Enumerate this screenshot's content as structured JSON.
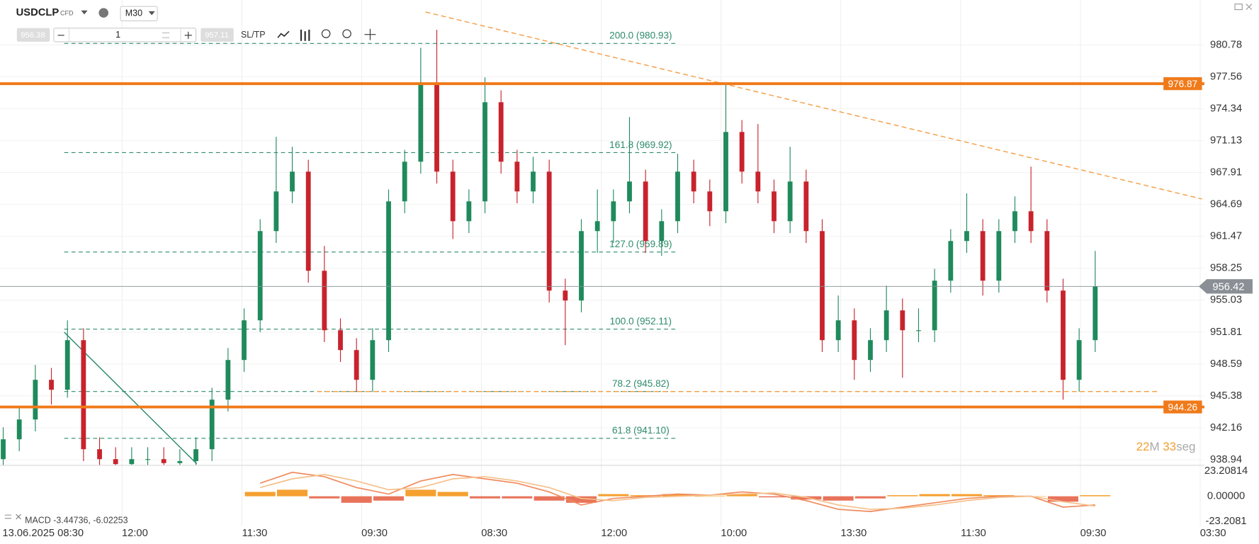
{
  "toolbar": {
    "symbol": "USDCLP",
    "instrument_type": "CFD",
    "timeframe": "M30",
    "sell_price": "956.38",
    "quantity": "1",
    "buy_price": "957.11",
    "sl_tp": "SL/TP"
  },
  "chart_data": {
    "type": "candlestick",
    "candles": [
      [
        939,
        942.2,
        937.8,
        941
      ],
      [
        941,
        944.2,
        939.8,
        943
      ],
      [
        943,
        948.5,
        941.8,
        947
      ],
      [
        947,
        948.2,
        944.5,
        946
      ],
      [
        946,
        953.0,
        945.2,
        951
      ],
      [
        951,
        952.2,
        938.8,
        940
      ],
      [
        940,
        941.2,
        937.8,
        939
      ],
      [
        939,
        940.2,
        937.3,
        938.5
      ],
      [
        938.5,
        940.2,
        937.3,
        939
      ],
      [
        939,
        940.2,
        937.8,
        939
      ],
      [
        939,
        940.2,
        937.4,
        938.6
      ],
      [
        938.6,
        940.0,
        937.4,
        938.8
      ],
      [
        938.8,
        941.2,
        937.6,
        940
      ],
      [
        940,
        946.2,
        938.8,
        945
      ],
      [
        945,
        950.2,
        943.8,
        949
      ],
      [
        949,
        954.2,
        947.8,
        953
      ],
      [
        953,
        963.2,
        951.8,
        962
      ],
      [
        962,
        971.5,
        960.8,
        966
      ],
      [
        966,
        970.5,
        964.8,
        968
      ],
      [
        968,
        969.2,
        956.8,
        958
      ],
      [
        958,
        960.5,
        950.8,
        952
      ],
      [
        952,
        953.2,
        948.8,
        950
      ],
      [
        950,
        951.2,
        945.8,
        947
      ],
      [
        947,
        952.2,
        945.8,
        951
      ],
      [
        951,
        966.2,
        949.8,
        965
      ],
      [
        965,
        970.2,
        963.8,
        969
      ],
      [
        969,
        980.5,
        967.8,
        977
      ],
      [
        977,
        982.3,
        966.8,
        968
      ],
      [
        968,
        969.2,
        961.2,
        963
      ],
      [
        963,
        966.2,
        961.8,
        965
      ],
      [
        965,
        977.5,
        963.8,
        975
      ],
      [
        975,
        976.2,
        967.8,
        969
      ],
      [
        969,
        970.2,
        964.8,
        966
      ],
      [
        966,
        969.5,
        964.8,
        968
      ],
      [
        968,
        969.2,
        954.8,
        956
      ],
      [
        956,
        957.2,
        950.5,
        955
      ],
      [
        955,
        963.2,
        953.8,
        962
      ],
      [
        962,
        966.2,
        959.8,
        963
      ],
      [
        963,
        966.2,
        960.8,
        965
      ],
      [
        965,
        973.5,
        963.8,
        967
      ],
      [
        967,
        968.2,
        959.8,
        961
      ],
      [
        961,
        964.2,
        959.5,
        963
      ],
      [
        963,
        969.8,
        961.8,
        968
      ],
      [
        968,
        969.2,
        964.8,
        966
      ],
      [
        966,
        967.2,
        962.5,
        964
      ],
      [
        964,
        976.8,
        962.8,
        972
      ],
      [
        972,
        973.2,
        966.8,
        968
      ],
      [
        968,
        972.8,
        964.8,
        966
      ],
      [
        966,
        967.2,
        961.8,
        963
      ],
      [
        963,
        970.5,
        961.8,
        967
      ],
      [
        967,
        968.2,
        960.8,
        962
      ],
      [
        962,
        963.2,
        949.8,
        951
      ],
      [
        951,
        955.5,
        949.8,
        953
      ],
      [
        953,
        954.2,
        947.0,
        949
      ],
      [
        949,
        952.2,
        947.8,
        951
      ],
      [
        951,
        956.5,
        949.8,
        954
      ],
      [
        954,
        955.2,
        947.2,
        952
      ],
      [
        952,
        954.2,
        950.8,
        952
      ],
      [
        952,
        958.2,
        950.8,
        957
      ],
      [
        957,
        962.2,
        955.8,
        961
      ],
      [
        961,
        965.8,
        959.8,
        962
      ],
      [
        962,
        963.2,
        955.5,
        957
      ],
      [
        957,
        963.2,
        955.8,
        962
      ],
      [
        962,
        965.5,
        960.8,
        964
      ],
      [
        964,
        968.5,
        960.8,
        962
      ],
      [
        962,
        963.2,
        954.8,
        956
      ],
      [
        956,
        957.2,
        945.0,
        947
      ],
      [
        947,
        952.2,
        945.8,
        951
      ],
      [
        951,
        960.0,
        949.8,
        956.42
      ]
    ],
    "colors": {
      "up": "#1f8a5c",
      "down": "#c8232c"
    },
    "ylim": [
      938.37,
      985.31
    ],
    "yticks": [
      980.78,
      977.56,
      974.34,
      971.13,
      967.91,
      964.69,
      961.47,
      958.25,
      955.03,
      951.81,
      948.59,
      945.38,
      942.16,
      938.94
    ],
    "time_labels": [
      "13.06.2025 08:30",
      "12:00",
      "11:30",
      "09:30",
      "08:30",
      "12:00",
      "10:00",
      "13:30",
      "11:30",
      "09:30",
      "03:30"
    ],
    "levels": [
      {
        "price": 976.87,
        "color": "#f07a1a"
      },
      {
        "price": 944.26,
        "color": "#f07a1a"
      }
    ],
    "current_price": 956.42,
    "fibonacci": [
      {
        "price": 980.93,
        "label": "200.0 (980.93)"
      },
      {
        "price": 969.92,
        "label": "161.8 (969.92)"
      },
      {
        "price": 959.89,
        "label": "127.0 (959.89)"
      },
      {
        "price": 952.11,
        "label": "100.0 (952.11)"
      },
      {
        "price": 945.82,
        "label": "78.2 (945.82)"
      },
      {
        "price": 941.1,
        "label": "61.8 (941.10)"
      }
    ],
    "fib_color": "#2e8b6b",
    "trendlines": [
      {
        "x": [
          26.3,
          74.65
        ],
        "y": [
          984.1,
          965.24
        ],
        "color": "#f5a04a",
        "dashed": true
      },
      {
        "x": [
          3.8,
          12.05
        ],
        "y": [
          951.8,
          938.53
        ],
        "color": "#2e8b6b",
        "dashed": false
      },
      {
        "x": [
          19.55,
          72.05
        ],
        "y": [
          945.82,
          945.82
        ],
        "color": "#f5a04a",
        "dashed": true
      }
    ],
    "timer": {
      "minutes": "22",
      "minutes_unit": "M",
      "seconds": "33",
      "seconds_unit": "seg"
    },
    "macd": {
      "label": "MACD -3.44736, -6.02253",
      "x": [
        16,
        18,
        20,
        22,
        24,
        26,
        28,
        30,
        32,
        34,
        36,
        38,
        40,
        42,
        44,
        46,
        48,
        50,
        52,
        54,
        56,
        58,
        60,
        62,
        64,
        66,
        68
      ],
      "macd": [
        12,
        22,
        18,
        8,
        2,
        14,
        20,
        16,
        12,
        4,
        -8,
        -2,
        0,
        2,
        1,
        4,
        2,
        -4,
        -12,
        -14,
        -10,
        -6,
        -2,
        0,
        0,
        -10,
        -8
      ],
      "signal": [
        8,
        16,
        20,
        14,
        6,
        8,
        16,
        18,
        14,
        8,
        -2,
        -4,
        -1,
        0,
        1,
        2,
        3,
        -1,
        -8,
        -12,
        -11,
        -8,
        -4,
        -1,
        0,
        -5,
        -9
      ],
      "histogram": [
        4,
        6,
        -2,
        -6,
        -4,
        6,
        4,
        -2,
        -2,
        -4,
        -6,
        2,
        1,
        2,
        0,
        2,
        -1,
        -3,
        -4,
        -2,
        1,
        2,
        2,
        1,
        0,
        -5,
        1
      ],
      "colors": {
        "macd": "#f08a5d",
        "signal": "#f5c08a",
        "positive": "#f5a030",
        "negative": "#e8735a"
      },
      "ylim": [
        -26.89,
        28.37
      ],
      "yticks": [
        23.20814,
        {
          "value": 0,
          "label": "0.00000"
        },
        -23.2081
      ]
    }
  }
}
